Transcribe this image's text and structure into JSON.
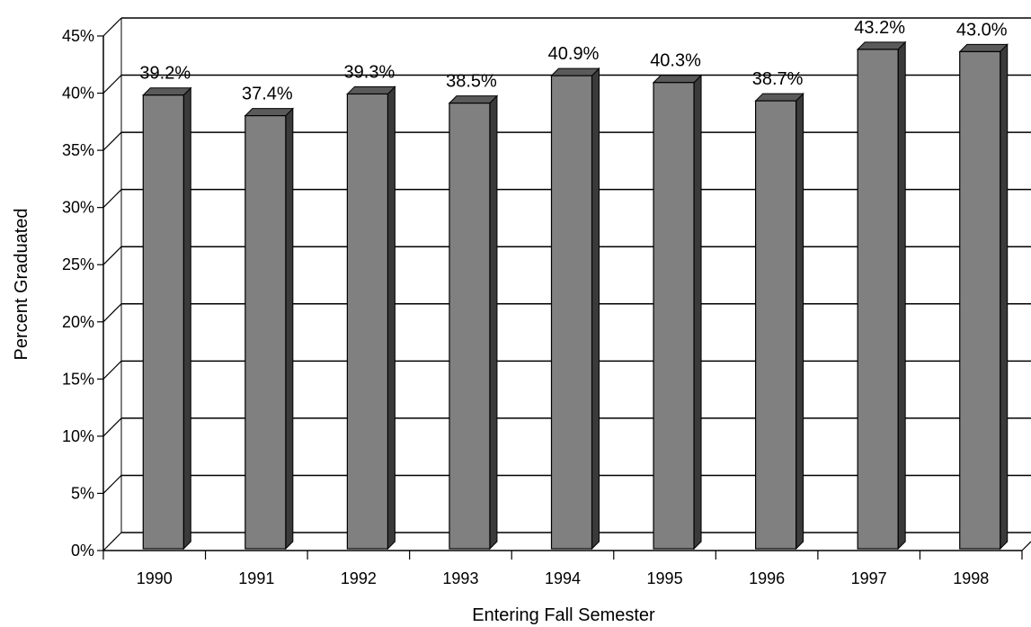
{
  "chart_data": {
    "type": "bar",
    "categories": [
      "1990",
      "1991",
      "1992",
      "1993",
      "1994",
      "1995",
      "1996",
      "1997",
      "1998"
    ],
    "values": [
      39.2,
      37.4,
      39.3,
      38.5,
      40.9,
      40.3,
      38.7,
      43.2,
      43.0
    ],
    "data_labels": [
      "39.2%",
      "37.4%",
      "39.3%",
      "38.5%",
      "40.9%",
      "40.3%",
      "38.7%",
      "43.2%",
      "43.0%"
    ],
    "xlabel": "Entering Fall Semester",
    "ylabel": "Percent Graduated",
    "ylim": [
      0,
      45
    ],
    "yticks": [
      0,
      5,
      10,
      15,
      20,
      25,
      30,
      35,
      40,
      45
    ],
    "ytick_labels": [
      "0%",
      "5%",
      "10%",
      "15%",
      "20%",
      "25%",
      "30%",
      "35%",
      "40%",
      "45%"
    ],
    "grid": true,
    "legend": "none",
    "colors": {
      "bar_front": "#808080",
      "bar_side": "#3a3a3a",
      "bar_top": "#5a5a5a",
      "grid": "#000000",
      "background": "#ffffff"
    }
  }
}
